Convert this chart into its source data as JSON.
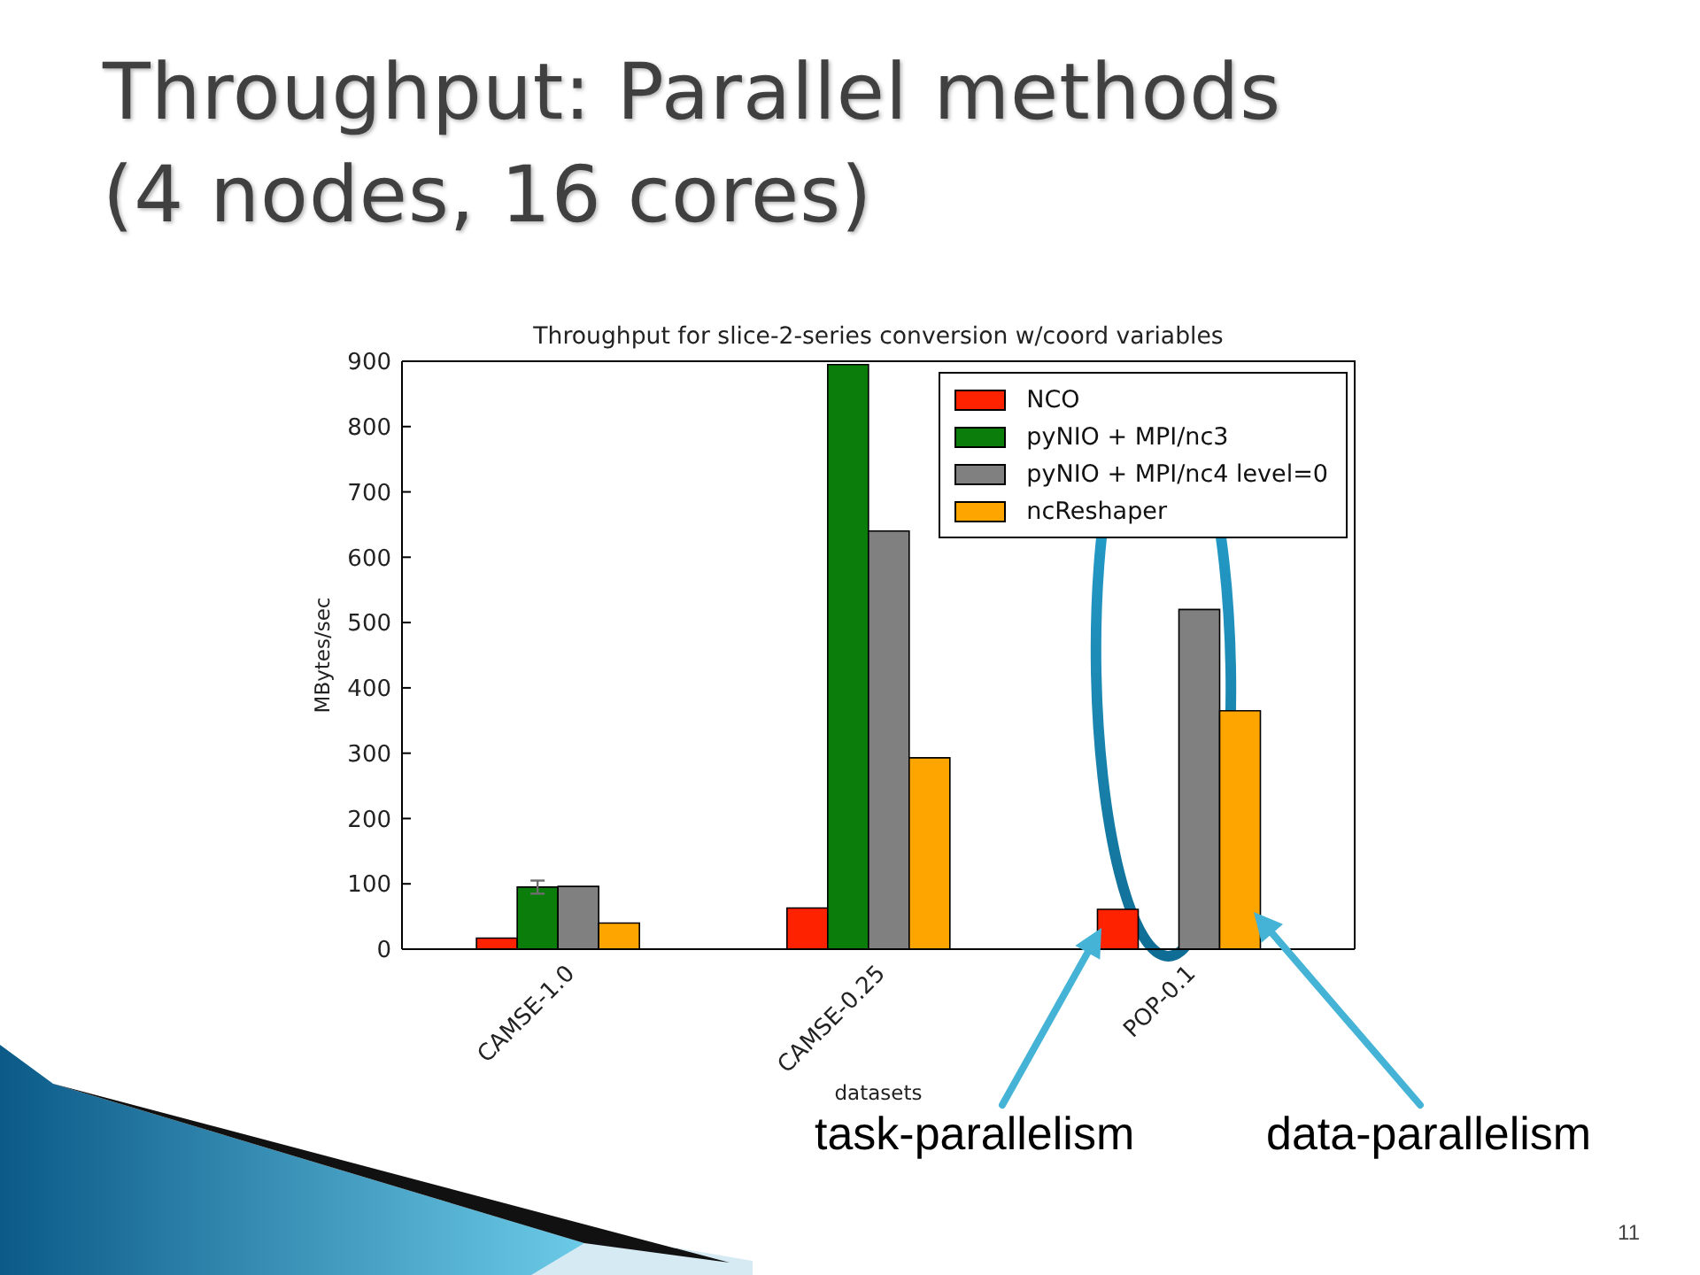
{
  "chart_data": {
    "type": "bar",
    "title": "Throughput: Parallel methods\n(4 nodes, 16 cores)",
    "subtitle": "Throughput for slice-2-series conversion w/coord variables",
    "xlabel": "datasets",
    "ylabel": "MBytes/sec",
    "categories": [
      "CAMSE-1.0",
      "CAMSE-0.25",
      "POP-0.1"
    ],
    "series": [
      {
        "name": "NCO",
        "color": "#ff2200",
        "values": [
          17,
          63,
          61
        ]
      },
      {
        "name": "pyNIO + MPI/nc3",
        "color": "#0a7d0a",
        "values": [
          95,
          895,
          null
        ],
        "errors": [
          10,
          null,
          null
        ]
      },
      {
        "name": "pyNIO + MPI/nc4 level=0",
        "color": "#808080",
        "values": [
          96,
          640,
          520
        ]
      },
      {
        "name": "ncReshaper",
        "color": "#ffa500",
        "values": [
          40,
          293,
          365
        ]
      }
    ],
    "ylim": [
      0,
      900
    ],
    "yticks": [
      0,
      100,
      200,
      300,
      400,
      500,
      600,
      700,
      800,
      900
    ],
    "legend": "top right",
    "annotations": [
      "task-parallelism",
      "data-parallelism",
      "11"
    ]
  }
}
